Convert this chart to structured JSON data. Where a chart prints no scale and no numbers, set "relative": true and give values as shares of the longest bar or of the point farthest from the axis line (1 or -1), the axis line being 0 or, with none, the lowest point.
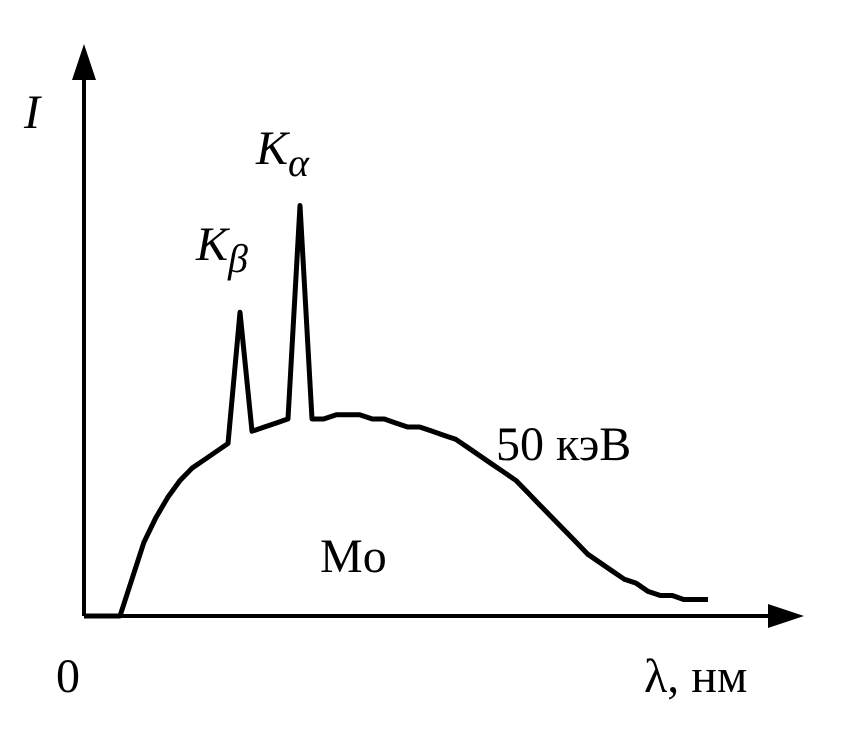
{
  "chart_data": {
    "type": "line",
    "relative": true,
    "xlabel": "λ, нм",
    "ylabel": "I",
    "color": "#000000",
    "marker": "none",
    "categories": [
      null,
      null,
      null,
      null,
      null,
      null,
      null,
      null,
      null,
      null,
      null,
      null,
      null,
      null,
      null,
      null,
      null,
      null,
      null,
      null,
      null,
      null,
      null,
      null,
      null,
      null,
      null,
      null,
      null,
      null,
      null,
      null,
      null,
      null,
      null,
      null,
      null,
      null,
      null,
      null,
      null,
      null,
      null,
      null,
      null,
      null,
      null,
      null,
      null,
      null,
      null,
      null,
      null
    ],
    "values": [
      0,
      0,
      0,
      0,
      0.09,
      0.18,
      0.24,
      0.29,
      0.33,
      0.36,
      0.38,
      0.4,
      0.42,
      0.74,
      0.45,
      0.46,
      0.47,
      0.48,
      1,
      0.48,
      0.48,
      0.49,
      0.49,
      0.49,
      0.48,
      0.48,
      0.47,
      0.46,
      0.46,
      0.45,
      0.44,
      0.43,
      0.41,
      0.39,
      0.37,
      0.35,
      0.33,
      0.3,
      0.27,
      0.24,
      0.21,
      0.18,
      0.15,
      0.13,
      0.11,
      0.09,
      0.08,
      0.06,
      0.05,
      0.05,
      0.04,
      0.04,
      0.04
    ],
    "annotations": [
      "0",
      "K$_{β}$",
      "K$_{α}$",
      "50 кэВ",
      "Mo"
    ]
  }
}
